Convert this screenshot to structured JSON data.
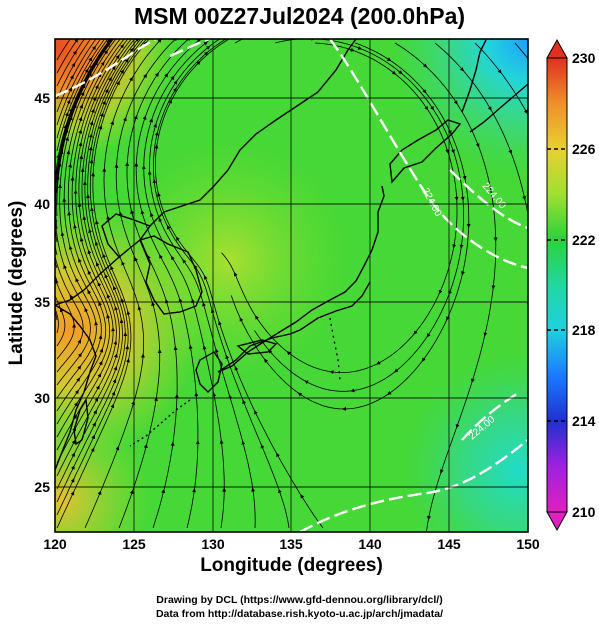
{
  "title": "MSM 00Z27Jul2024 (200.0hPa)",
  "xaxis": {
    "label": "Longitude (degrees)",
    "range": [
      120,
      150
    ],
    "ticks": [
      "120",
      "125",
      "130",
      "135",
      "140",
      "145",
      "150"
    ]
  },
  "yaxis": {
    "label": "Latitude  (degrees)",
    "range": [
      22.4,
      47.9
    ],
    "ticks": [
      "25",
      "30",
      "35",
      "40",
      "45"
    ]
  },
  "colorbar": {
    "range": [
      210,
      230
    ],
    "ticks": [
      "230",
      "226",
      "222",
      "218",
      "214",
      "210"
    ]
  },
  "contour_labels": [
    "224.00",
    "224.00",
    "224.00"
  ],
  "credits": {
    "line1": "Drawing by DCL (https://www.gfd-dennou.org/library/dcl/)",
    "line2": "Data from http://database.rish.kyoto-u.ac.jp/arch/jmadata/"
  },
  "colors": {
    "high": "#e05020",
    "mid": "#2ad23a",
    "low": "#e020c0",
    "contour": "#ffffff",
    "coast": "#000000"
  },
  "chart_data": {
    "type": "heatmap",
    "title": "MSM 00Z27Jul2024 (200.0hPa)",
    "xlabel": "Longitude (degrees)",
    "ylabel": "Latitude  (degrees)",
    "xlim": [
      120,
      150
    ],
    "ylim": [
      22.4,
      47.9
    ],
    "colorbar_range": [
      210,
      230
    ],
    "colorbar_ticks": [
      210,
      214,
      218,
      222,
      226,
      230
    ],
    "contour_value": 224.0,
    "grid": true,
    "field_estimates": [
      {
        "region": "northwest corner",
        "lon": 121,
        "lat": 47,
        "value": 229
      },
      {
        "region": "northeast corner",
        "lon": 149,
        "lat": 46,
        "value": 219
      },
      {
        "region": "western East China Sea",
        "lon": 122,
        "lat": 33,
        "value": 226
      },
      {
        "region": "central Japan",
        "lon": 137,
        "lat": 37,
        "value": 223
      },
      {
        "region": "southeast",
        "lon": 148,
        "lat": 24,
        "value": 220
      },
      {
        "region": "southwest",
        "lon": 121,
        "lat": 24,
        "value": 225
      }
    ]
  }
}
